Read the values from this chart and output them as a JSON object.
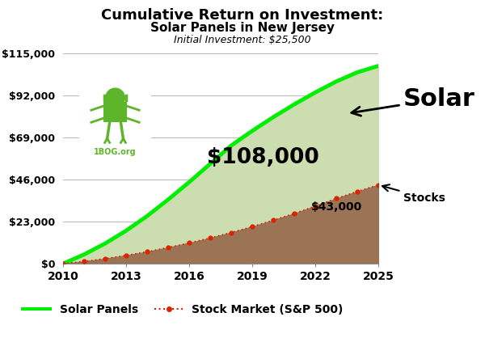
{
  "title_line1": "Cumulative Return on Investment:",
  "title_line2": "Solar Panels in New Jersey",
  "title_line3": "Initial Investment: $25,500",
  "years": [
    2010,
    2011,
    2012,
    2013,
    2014,
    2015,
    2016,
    2017,
    2018,
    2019,
    2020,
    2021,
    2022,
    2023,
    2024,
    2025
  ],
  "solar_values": [
    0,
    5000,
    11000,
    18000,
    26000,
    35000,
    44500,
    54500,
    64500,
    72500,
    80000,
    87000,
    93500,
    99500,
    104500,
    108000
  ],
  "stock_values": [
    0,
    1200,
    2700,
    4500,
    6500,
    8800,
    11300,
    14000,
    17000,
    20200,
    23700,
    27400,
    31400,
    35600,
    39400,
    43000
  ],
  "solar_line_color": "#00ee00",
  "solar_fill_color": "#ccddb0",
  "stock_line_color": "#dd2200",
  "stock_fill_color": "#9b7355",
  "xlim": [
    2010,
    2025
  ],
  "ylim": [
    0,
    120000
  ],
  "yticks": [
    0,
    23000,
    46000,
    69000,
    92000,
    115000
  ],
  "xticks": [
    2010,
    2013,
    2016,
    2019,
    2022,
    2025
  ],
  "ytick_labels": [
    "$0",
    "$23,000",
    "$46,000",
    "$69,000",
    "$92,000",
    "$115,000"
  ],
  "solar_label_text": "$108,000",
  "stock_label_text": "$43,000",
  "solar_annotation": "Solar",
  "stock_annotation": "Stocks",
  "bg_color": "#ffffff",
  "grid_color": "#bbbbbb",
  "legend_solar": "Solar Panels",
  "legend_stock": "Stock Market (S&P 500)",
  "logo_bg": "#5db529",
  "logo_text": "1BOG.org"
}
